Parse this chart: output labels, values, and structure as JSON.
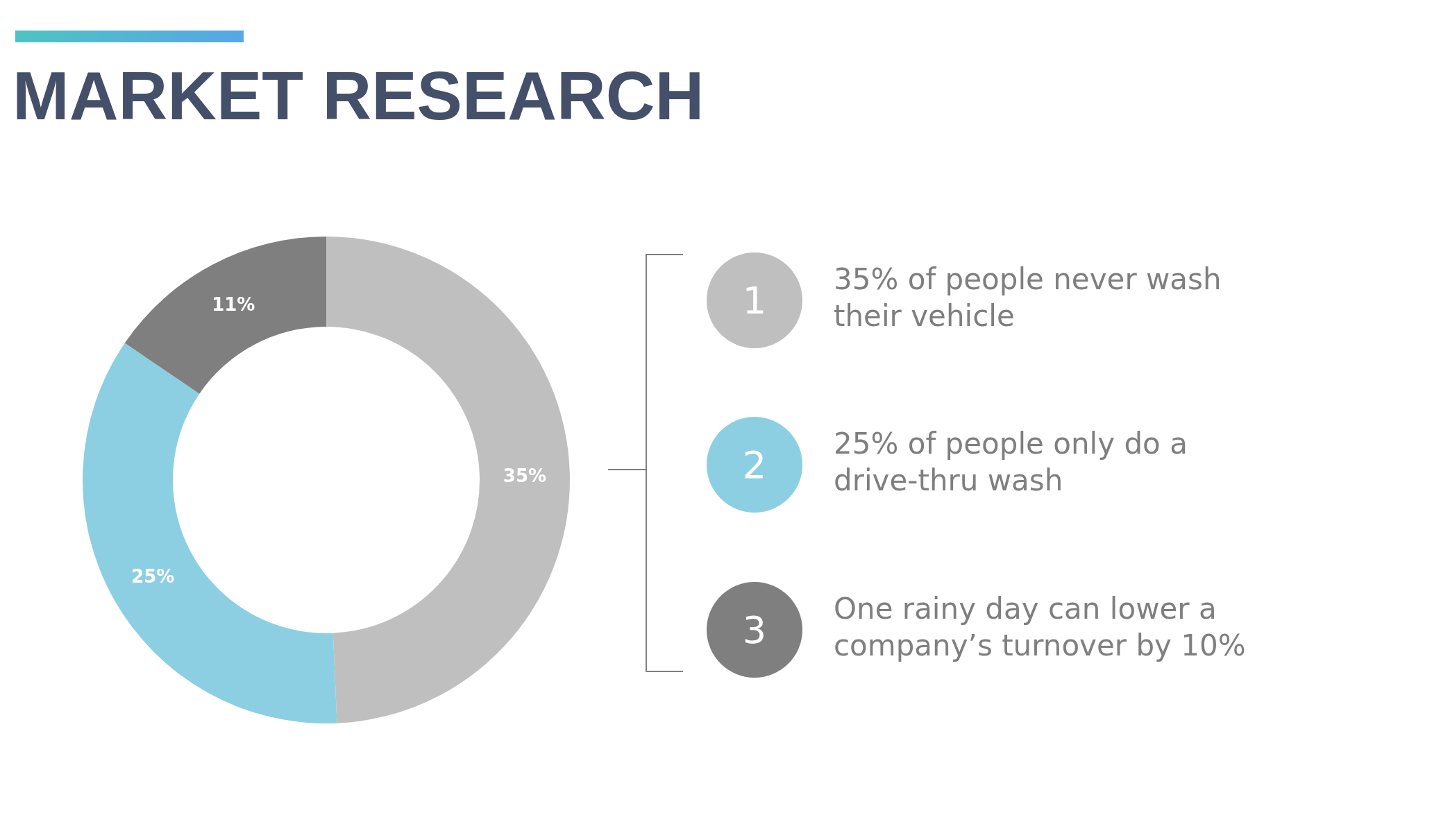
{
  "chart_data": {
    "type": "donut",
    "title": "MARKET RESEARCH",
    "categories": [
      null,
      null,
      null
    ],
    "values": [
      35,
      25,
      11
    ],
    "colors": [
      "#bfbfbf",
      "#8dcfe2",
      "#7f7f7f"
    ],
    "value_labels": [
      "35%",
      "25%",
      "11%"
    ],
    "annotations": [
      "1",
      "35% of people never wash their vehicle",
      "2",
      "25% of people only do a drive-thru wash",
      "3",
      "One rainy day can lower a company’s turnover by 10%"
    ]
  }
}
